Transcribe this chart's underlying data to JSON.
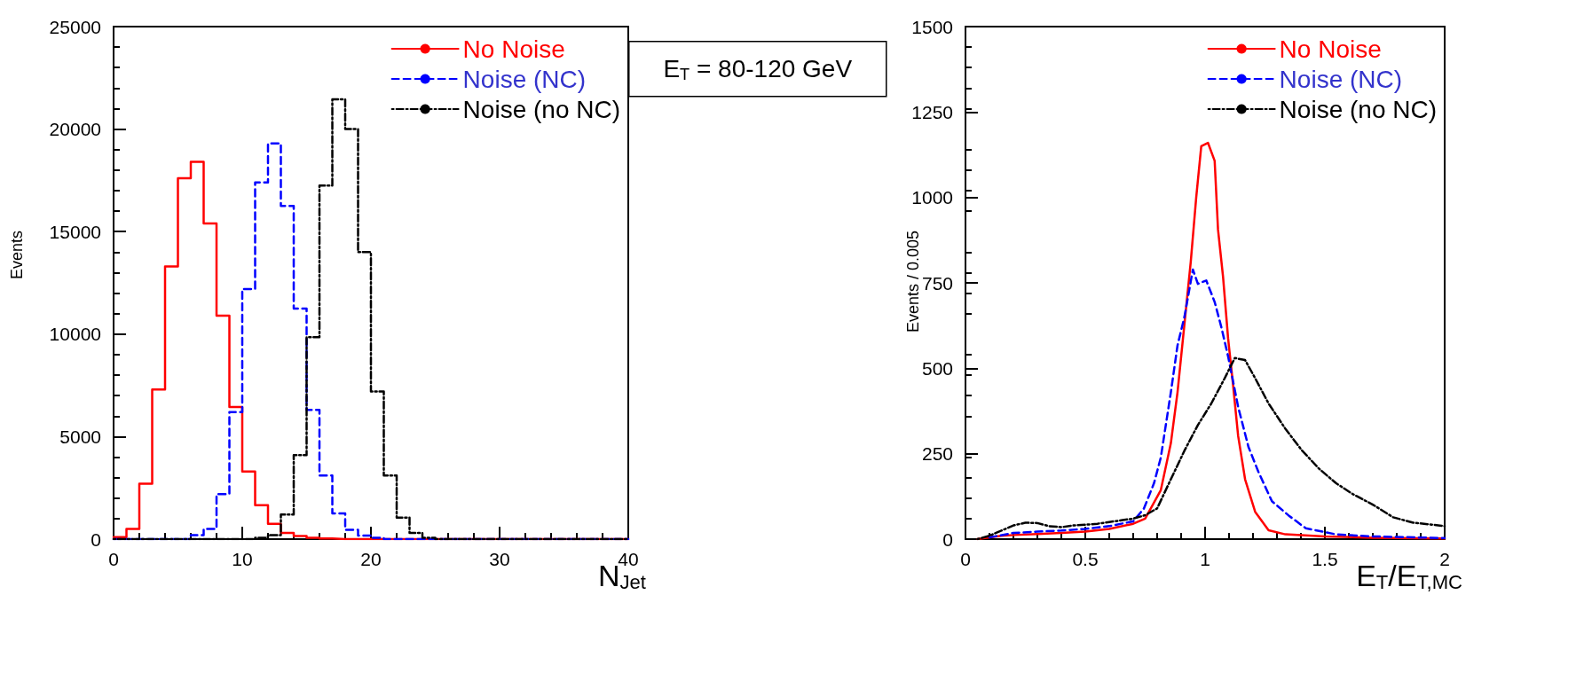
{
  "chart_data": [
    {
      "type": "histogram",
      "xlabel": "N$_{Jet}$",
      "ylabel": "Events",
      "annotations": [
        "E$_{T}$ = 80-120 GeV"
      ],
      "bins": [
        0,
        1,
        2,
        3,
        4,
        5,
        6,
        7,
        8,
        9,
        10,
        11,
        12,
        13,
        14,
        15,
        16,
        17,
        18,
        19,
        20,
        21,
        22,
        23,
        24,
        25,
        26,
        27,
        28,
        29,
        30,
        31,
        32,
        33,
        34,
        35,
        36,
        37,
        38,
        39,
        40
      ],
      "series": [
        {
          "name": "No Noise",
          "color": "#ff0000",
          "line_style": "solid",
          "values": [
            100,
            500,
            2700,
            7300,
            13300,
            17600,
            18400,
            15400,
            10900,
            6450,
            3300,
            1650,
            750,
            300,
            150,
            70,
            30,
            0,
            0,
            0,
            0,
            0,
            0,
            0,
            0,
            0,
            0,
            0,
            0,
            0,
            0,
            0,
            0,
            0,
            0,
            0,
            0,
            0,
            0,
            0
          ]
        },
        {
          "name": "Noise (NC)",
          "color": "#0000ff",
          "line_style": "dashed",
          "values": [
            0,
            0,
            0,
            0,
            0,
            0,
            200,
            500,
            2200,
            6200,
            12200,
            17400,
            19300,
            16250,
            11250,
            6300,
            3100,
            1250,
            450,
            170,
            70,
            0,
            0,
            0,
            0,
            0,
            0,
            0,
            0,
            0,
            0,
            0,
            0,
            0,
            0,
            0,
            0,
            0,
            0,
            0
          ]
        },
        {
          "name": "Noise (no NC)",
          "color": "#000000",
          "line_style": "dotted",
          "values": [
            0,
            0,
            0,
            0,
            0,
            0,
            0,
            0,
            0,
            0,
            0,
            70,
            200,
            1200,
            4100,
            9850,
            17250,
            21450,
            20000,
            14000,
            7200,
            3100,
            1050,
            300,
            70,
            0,
            0,
            0,
            0,
            0,
            0,
            0,
            0,
            0,
            0,
            0,
            0,
            0,
            0,
            0
          ]
        }
      ],
      "xlim": [
        0,
        40
      ],
      "xticks": [
        0,
        10,
        20,
        30,
        40
      ],
      "ylim": [
        0,
        25000
      ],
      "yticks": [
        0,
        5000,
        10000,
        15000,
        20000,
        25000
      ],
      "grid": false,
      "legend": "top right"
    },
    {
      "type": "line",
      "xlabel": "E$_{T}$/E$_{T,MC}$",
      "ylabel": "Events / 0.005",
      "marker": "none",
      "series": [
        {
          "name": "No Noise",
          "color": "#ff0000",
          "line_style": "solid",
          "x": [
            0.05,
            0.1,
            0.15,
            0.2,
            0.3,
            0.4,
            0.5,
            0.6,
            0.7,
            0.75,
            0.815,
            0.857,
            0.885,
            0.914,
            0.94,
            0.963,
            0.984,
            1.012,
            1.04,
            1.054,
            1.075,
            1.096,
            1.117,
            1.138,
            1.167,
            1.209,
            1.265,
            1.335,
            1.5,
            1.7,
            2.0
          ],
          "values": [
            0,
            5,
            10,
            12,
            15,
            18,
            22,
            30,
            45,
            60,
            143,
            280,
            430,
            630,
            810,
            1000,
            1150,
            1160,
            1107,
            906,
            768,
            588,
            450,
            302,
            175,
            80,
            26,
            14,
            8,
            4,
            2
          ]
        },
        {
          "name": "Noise (NC)",
          "color": "#0000ff",
          "line_style": "dashed",
          "x": [
            0.1,
            0.2,
            0.3,
            0.4,
            0.5,
            0.6,
            0.7,
            0.745,
            0.787,
            0.815,
            0.857,
            0.885,
            0.914,
            0.949,
            0.97,
            1.005,
            1.04,
            1.068,
            1.096,
            1.138,
            1.181,
            1.223,
            1.279,
            1.349,
            1.42,
            1.546,
            1.7,
            2.0
          ],
          "values": [
            5,
            18,
            22,
            25,
            30,
            38,
            52,
            90,
            164,
            238,
            429,
            567,
            651,
            789,
            747,
            757,
            694,
            620,
            535,
            387,
            270,
            196,
            111,
            69,
            32,
            14,
            8,
            3
          ]
        },
        {
          "name": "Noise (no NC)",
          "color": "#000000",
          "line_style": "dotted",
          "x": [
            0.05,
            0.1,
            0.15,
            0.2,
            0.25,
            0.3,
            0.35,
            0.4,
            0.45,
            0.5,
            0.55,
            0.6,
            0.65,
            0.7,
            0.75,
            0.8,
            0.857,
            0.914,
            0.97,
            1.026,
            1.082,
            1.124,
            1.167,
            1.209,
            1.265,
            1.335,
            1.405,
            1.476,
            1.546,
            1.616,
            1.7,
            1.785,
            1.869,
            1.954,
            2.0
          ],
          "values": [
            0,
            10,
            25,
            40,
            48,
            47,
            38,
            35,
            40,
            42,
            45,
            50,
            55,
            60,
            70,
            90,
            175,
            259,
            334,
            397,
            471,
            530,
            524,
            471,
            397,
            323,
            259,
            206,
            164,
            132,
            101,
            64,
            48,
            42,
            38
          ]
        }
      ],
      "xlim": [
        0,
        2
      ],
      "xticks": [
        0,
        0.5,
        1,
        1.5,
        2
      ],
      "ylim": [
        0,
        1500
      ],
      "yticks": [
        0,
        250,
        500,
        750,
        1000,
        1250,
        1500
      ],
      "grid": false,
      "legend": "top right"
    }
  ]
}
